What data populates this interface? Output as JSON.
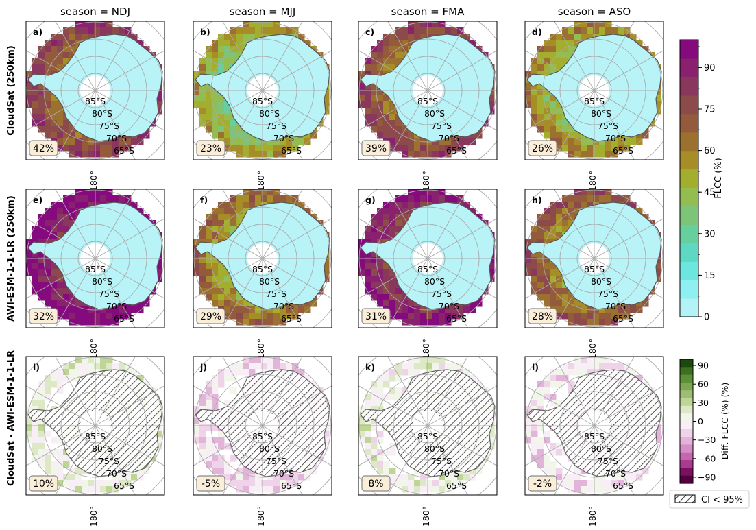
{
  "chart_data": {
    "type": "heatmap",
    "projection": "south-polar-stereographic",
    "columns": [
      "season = NDJ",
      "season = MJJ",
      "season = FMA",
      "season = ASO"
    ],
    "rows": [
      {
        "label": "CloudSat (250km)",
        "colorbar": "flcc"
      },
      {
        "label": "AWI-ESM-1-1-LR (250km)",
        "colorbar": "flcc"
      },
      {
        "label": "CloudSat - AWI-ESM-1-1-LR",
        "colorbar": "diff"
      }
    ],
    "panels": [
      {
        "letter": "a)",
        "value": "42%"
      },
      {
        "letter": "b)",
        "value": "23%"
      },
      {
        "letter": "c)",
        "value": "39%"
      },
      {
        "letter": "d)",
        "value": "26%"
      },
      {
        "letter": "e)",
        "value": "32%"
      },
      {
        "letter": "f)",
        "value": "29%"
      },
      {
        "letter": "g)",
        "value": "31%"
      },
      {
        "letter": "h)",
        "value": "28%"
      },
      {
        "letter": "i)",
        "value": "10%"
      },
      {
        "letter": "j)",
        "value": "-5%"
      },
      {
        "letter": "k)",
        "value": "8%"
      },
      {
        "letter": "l)",
        "value": "-2%"
      }
    ],
    "latitude_labels": [
      "85°S",
      "80°S",
      "75°S",
      "70°S",
      "65°S"
    ],
    "longitude_label": "180°",
    "colorbar_flcc": {
      "label": "FLCC (%)",
      "range": [
        0,
        100
      ],
      "ticks": [
        "0",
        "15",
        "30",
        "45",
        "60",
        "75",
        "90"
      ],
      "colors": [
        "#b3f3f8",
        "#8ff0f2",
        "#6ee6e0",
        "#5fd8c3",
        "#66cf9e",
        "#7dc478",
        "#93bd50",
        "#a3ae2f",
        "#a68d28",
        "#9c712f",
        "#935a3b",
        "#8c4a4a",
        "#89375d",
        "#8a216f",
        "#850a7e"
      ]
    },
    "colorbar_diff": {
      "label": "Diff. FLCC (%)  (%)",
      "range": [
        -100,
        100
      ],
      "ticks": [
        "90",
        "60",
        "30",
        "0",
        "−30",
        "−60",
        "−90"
      ],
      "colors": [
        "#1c4a0e",
        "#3c7020",
        "#5e8e38",
        "#7ea652",
        "#9dbd72",
        "#bed596",
        "#dde9c6",
        "#f1f5ea",
        "#f8eef5",
        "#efd3e9",
        "#e3b4d9",
        "#d58ec6",
        "#c766b0",
        "#a83a8f",
        "#7a1060",
        "#53003e"
      ]
    },
    "legend": {
      "hatch_label": "CI < 95%"
    },
    "colors": {
      "continent": "#b8f3f8",
      "land_outline": "#555555",
      "grid": "#aaaaaa",
      "badge_fill": "#fbeed8"
    }
  }
}
